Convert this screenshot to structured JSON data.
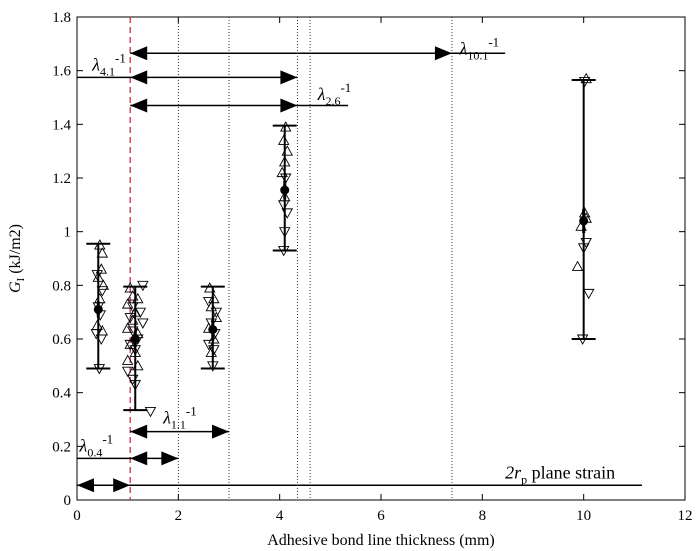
{
  "chart_data": {
    "type": "scatter",
    "title": "",
    "xlabel": "Adhesive bond line thickness (mm)",
    "ylabel": {
      "main": "G",
      "sub": "I",
      "unit": " (kJ/m2)"
    },
    "xlim": [
      0,
      12
    ],
    "ylim": [
      0,
      1.8
    ],
    "xticks": [
      0,
      2,
      4,
      6,
      8,
      10,
      12
    ],
    "yticks": [
      0,
      0.2,
      0.4,
      0.6,
      0.8,
      1.0,
      1.2,
      1.4,
      1.6,
      1.8
    ],
    "xtick_labels": [
      "0",
      "2",
      "4",
      "6",
      "8",
      "10",
      "12"
    ],
    "ytick_labels": [
      "0",
      "0.2",
      "0.4",
      "0.6",
      "0.8",
      "1",
      "1.2",
      "1.4",
      "1.6",
      "1.8"
    ],
    "grid": false,
    "dashed_line": {
      "x": 1.05,
      "color": "#b03a48"
    },
    "dotted_lines_x": [
      2.0,
      3.0,
      4.35,
      4.6,
      7.4
    ],
    "groups": [
      {
        "x": 0.42,
        "mean": 0.71,
        "min": 0.49,
        "max": 0.955,
        "mean_err_y": 0.03,
        "mean_err_x": 0.07,
        "up_triangles": [
          [
            0.45,
            0.95
          ],
          [
            0.5,
            0.92
          ],
          [
            0.48,
            0.86
          ],
          [
            0.42,
            0.83
          ],
          [
            0.52,
            0.8
          ],
          [
            0.45,
            0.75
          ],
          [
            0.4,
            0.65
          ],
          [
            0.5,
            0.63
          ]
        ],
        "down_triangles": [
          [
            0.4,
            0.84
          ],
          [
            0.5,
            0.78
          ],
          [
            0.42,
            0.72
          ],
          [
            0.46,
            0.69
          ],
          [
            0.38,
            0.62
          ],
          [
            0.48,
            0.6
          ],
          [
            0.44,
            0.49
          ]
        ]
      },
      {
        "x": 1.15,
        "mean": 0.6,
        "min": 0.335,
        "max": 0.795,
        "mean_err_y": 0.03,
        "mean_err_x": 0.08,
        "up_triangles": [
          [
            1.05,
            0.79
          ],
          [
            1.1,
            0.76
          ],
          [
            1.0,
            0.73
          ],
          [
            1.2,
            0.75
          ],
          [
            1.15,
            0.7
          ],
          [
            1.1,
            0.67
          ],
          [
            1.0,
            0.64
          ],
          [
            1.2,
            0.62
          ],
          [
            1.05,
            0.58
          ],
          [
            1.15,
            0.55
          ],
          [
            1.0,
            0.52
          ],
          [
            1.2,
            0.5
          ]
        ],
        "down_triangles": [
          [
            1.3,
            0.8
          ],
          [
            1.1,
            0.72
          ],
          [
            1.25,
            0.7
          ],
          [
            1.05,
            0.68
          ],
          [
            1.3,
            0.66
          ],
          [
            1.1,
            0.63
          ],
          [
            1.2,
            0.6
          ],
          [
            1.05,
            0.58
          ],
          [
            1.15,
            0.56
          ],
          [
            1.0,
            0.48
          ],
          [
            1.1,
            0.45
          ],
          [
            1.15,
            0.43
          ],
          [
            1.45,
            0.33
          ]
        ]
      },
      {
        "x": 2.68,
        "mean": 0.635,
        "min": 0.49,
        "max": 0.795,
        "mean_err_y": 0.04,
        "mean_err_x": 0.07,
        "up_triangles": [
          [
            2.62,
            0.79
          ],
          [
            2.7,
            0.75
          ],
          [
            2.65,
            0.72
          ],
          [
            2.75,
            0.68
          ],
          [
            2.6,
            0.64
          ],
          [
            2.7,
            0.6
          ],
          [
            2.65,
            0.55
          ]
        ],
        "down_triangles": [
          [
            2.6,
            0.74
          ],
          [
            2.75,
            0.7
          ],
          [
            2.65,
            0.66
          ],
          [
            2.72,
            0.62
          ],
          [
            2.6,
            0.58
          ],
          [
            2.7,
            0.56
          ],
          [
            2.68,
            0.5
          ]
        ]
      },
      {
        "x": 4.1,
        "mean": 1.155,
        "min": 0.93,
        "max": 1.395,
        "mean_err_y": 0.035,
        "mean_err_x": 0.05,
        "up_triangles": [
          [
            4.12,
            1.39
          ],
          [
            4.08,
            1.34
          ],
          [
            4.15,
            1.3
          ],
          [
            4.1,
            1.26
          ],
          [
            4.05,
            1.22
          ],
          [
            4.1,
            1.13
          ]
        ],
        "down_triangles": [
          [
            4.12,
            1.2
          ],
          [
            4.08,
            1.1
          ],
          [
            4.15,
            1.07
          ],
          [
            4.1,
            1.0
          ],
          [
            4.08,
            0.93
          ]
        ]
      },
      {
        "x": 10.0,
        "mean": 1.04,
        "min": 0.6,
        "max": 1.565,
        "mean_err_y": 0.045,
        "mean_err_x": 0.05,
        "up_triangles": [
          [
            10.05,
            1.57
          ],
          [
            10.02,
            1.07
          ],
          [
            10.05,
            1.05
          ],
          [
            9.95,
            1.02
          ],
          [
            9.88,
            0.87
          ]
        ],
        "down_triangles": [
          [
            10.02,
            1.56
          ],
          [
            10.05,
            0.96
          ],
          [
            10.0,
            0.94
          ],
          [
            10.1,
            0.77
          ],
          [
            9.98,
            0.6
          ]
        ]
      }
    ],
    "arrows": [
      {
        "label_main": "λ",
        "label_sub": "10.1",
        "label_sup": "-1",
        "y": 1.665,
        "x_start": 1.05,
        "x_head": 7.4,
        "x_line_end": 8.45,
        "label_x": 7.55,
        "label_y": 1.66
      },
      {
        "label_main": "λ",
        "label_sub": "4.1",
        "label_sup": "-1",
        "y": 1.575,
        "x_start": 1.05,
        "x_head": 4.35,
        "x_line_end": 4.35,
        "label_x": 0.3,
        "label_y": 1.6,
        "left_segment": [
          0,
          1.05
        ]
      },
      {
        "label_main": "λ",
        "label_sub": "2.6",
        "label_sup": "-1",
        "y": 1.47,
        "x_start": 1.05,
        "x_head": 4.35,
        "x_line_end": 5.35,
        "label_x": 4.75,
        "label_y": 1.49
      },
      {
        "label_main": "λ",
        "label_sub": "1.1",
        "label_sup": "-1",
        "y": 0.255,
        "x_start": 1.05,
        "x_head": 3.0,
        "x_line_end": 3.0,
        "label_x": 1.7,
        "label_y": 0.285
      },
      {
        "label_main": "λ",
        "label_sub": "0.4",
        "label_sup": "-1",
        "y": 0.155,
        "x_start": 1.05,
        "x_head": 2.0,
        "x_line_end": 2.0,
        "label_x": 0.05,
        "label_y": 0.18,
        "left_segment": [
          0,
          1.05
        ]
      },
      {
        "label_main": "2r",
        "label_sub": "p",
        "label_sup": "",
        "label_tail": " plane strain",
        "y": 0.055,
        "x_start": 0.0,
        "x_head": 1.05,
        "x_line_end": 11.15,
        "label_x": 8.45,
        "label_y": 0.08,
        "double_headed": true
      }
    ]
  }
}
